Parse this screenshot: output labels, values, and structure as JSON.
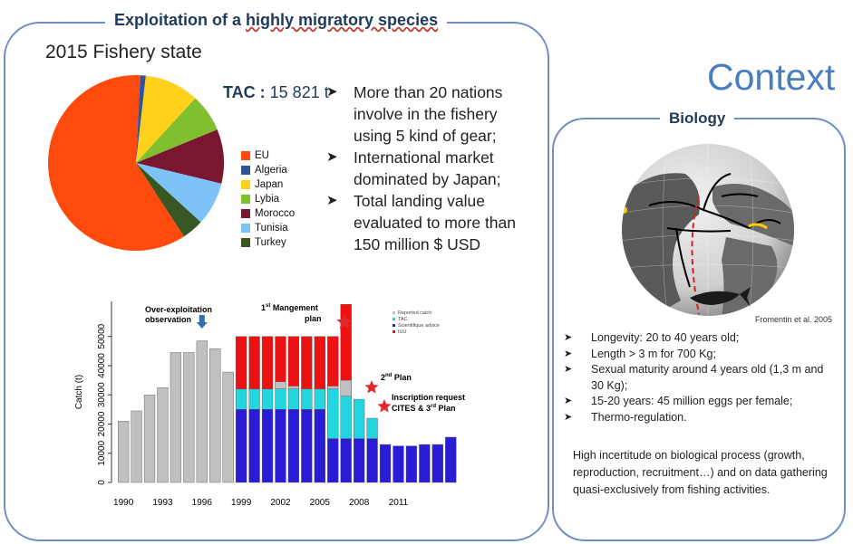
{
  "left_panel": {
    "title_part1": "Exploitation  of a ",
    "title_part2": "highly migratory  species",
    "subtitle": "2015 Fishery state",
    "tac_label": "TAC :",
    "tac_value": " 15 821 t",
    "bullets": [
      "More than 20 nations involve in the fishery using 5 kind of gear;",
      "International market dominated by Japan;",
      "Total landing value evaluated to more than 150 million $ USD"
    ]
  },
  "context_title": "Context",
  "right_panel": {
    "title": "Biology",
    "citation": "Fromentin et al. 2005",
    "bullets": [
      "Longevity: 20 to 40 years old;",
      "Length > 3 m for 700 Kg;",
      "Sexual maturity around 4 years old (1,3 m and 30 Kg);",
      "15-20 years: 45 million eggs per female;",
      "Thermo-regulation."
    ],
    "note": "High incertitude on biological process (growth, reproduction, recruitment…) and on data gathering quasi-exclusively from fishing activities."
  },
  "icons": {
    "bullet": "arrow-bullet-icon",
    "star": "star-icon",
    "pointer": "down-arrow-icon",
    "globe": "globe-map-icon",
    "fish": "tuna-fish-icon"
  },
  "chart_data": [
    {
      "type": "pie",
      "labels": [
        "EU",
        "Algeria",
        "Japan",
        "Lybia",
        "Morocco",
        "Tunisia",
        "Turkey"
      ],
      "values": [
        60,
        1,
        10,
        7,
        10,
        8,
        4
      ],
      "colors": [
        "#ff4a0e",
        "#2f5597",
        "#ffd11a",
        "#7fbf30",
        "#7a1730",
        "#7ec3f7",
        "#385723"
      ],
      "legend_position": "right"
    },
    {
      "type": "bar",
      "x": [
        1990,
        1991,
        1992,
        1993,
        1994,
        1995,
        1996,
        1997,
        1998,
        1999,
        2000,
        2001,
        2002,
        2003,
        2004,
        2005,
        2006,
        2007,
        2008,
        2009,
        2010,
        2011,
        2012,
        2013,
        2014,
        2015
      ],
      "x_tick_labels": [
        "1990",
        "1993",
        "1996",
        "1999",
        "2002",
        "2005",
        "2008",
        "2011"
      ],
      "ylabel": "Catch (t)",
      "y_ticks": [
        0,
        10000,
        20000,
        30000,
        40000,
        50000
      ],
      "ylim": [
        0,
        62000
      ],
      "reported_catch": [
        21000,
        24500,
        30000,
        32500,
        44500,
        44500,
        48500,
        45800,
        37800,
        null,
        null,
        null,
        null,
        null,
        null,
        null,
        null,
        null,
        null,
        null,
        null,
        null,
        null,
        null,
        null,
        null
      ],
      "tac": [
        null,
        null,
        null,
        null,
        null,
        null,
        null,
        null,
        null,
        32000,
        32000,
        32000,
        32000,
        32000,
        32000,
        32000,
        32000,
        29500,
        28500,
        22000,
        null,
        null,
        null,
        null,
        null,
        null
      ],
      "scientific_advice": [
        null,
        null,
        null,
        null,
        null,
        null,
        null,
        null,
        null,
        25000,
        25000,
        25000,
        25000,
        25000,
        25000,
        25000,
        15000,
        15000,
        15000,
        15000,
        13000,
        12500,
        12500,
        13000,
        13000,
        15500
      ],
      "iuu_top": [
        null,
        null,
        null,
        null,
        null,
        null,
        null,
        null,
        null,
        50000,
        50000,
        50000,
        50000,
        50000,
        50000,
        50000,
        50000,
        61000,
        null,
        null,
        null,
        null,
        null,
        null,
        null,
        null
      ],
      "gray_over_tac": [
        null,
        null,
        null,
        null,
        null,
        null,
        null,
        null,
        null,
        null,
        null,
        null,
        34500,
        33000,
        null,
        null,
        33000,
        35000,
        null,
        null,
        null,
        null,
        null,
        null,
        null,
        null
      ],
      "series_names": [
        "Reported catch",
        "TAC",
        "Scientifique advice",
        "IUU"
      ],
      "series_colors": [
        "#c0c0c0",
        "#22d6e0",
        "#2a1bd6",
        "#ee1111"
      ],
      "annotations": {
        "overexploitation": "Over-exploitation observation",
        "plan1_sup": "st",
        "plan1_a": "1",
        "plan1_b": " Mangement plan",
        "plan2_a": "2",
        "plan2_sup": "nd",
        "plan2_b": " Plan",
        "cites": "Inscription request CITES & 3",
        "cites_sup": "rd",
        "cites_b": " Plan"
      },
      "legend_position": "top-right"
    }
  ]
}
